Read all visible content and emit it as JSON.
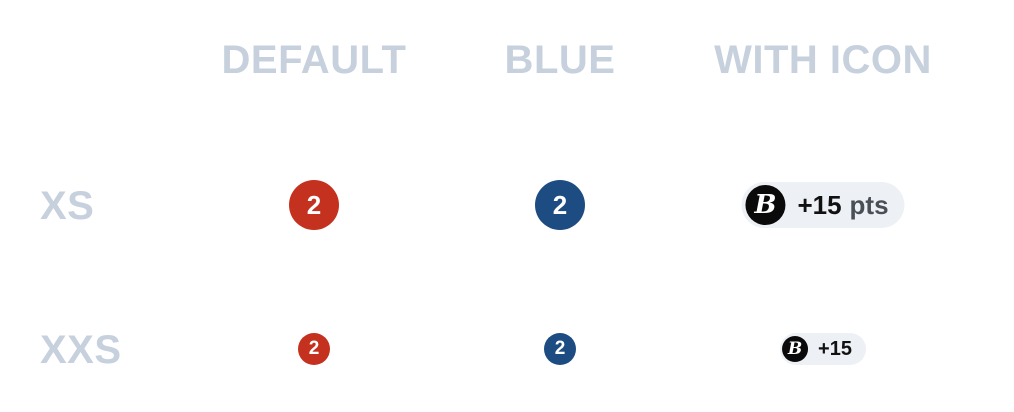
{
  "columns": {
    "default": "DEFAULT",
    "blue": "BLUE",
    "with_icon": "WITH ICON"
  },
  "rows": {
    "xs": "XS",
    "xxs": "XXS"
  },
  "badges": {
    "xs_default": "2",
    "xs_blue": "2",
    "xxs_default": "2",
    "xxs_blue": "2"
  },
  "icon_pills": {
    "xs": {
      "icon": "B",
      "icon_name": "brand-b-icon",
      "value": "+15",
      "unit": "pts"
    },
    "xxs": {
      "icon": "B",
      "icon_name": "brand-b-icon",
      "value": "+15"
    }
  },
  "colors": {
    "heading": "#c7d1dd",
    "default_badge": "#c4311e",
    "blue_badge": "#1d4c82",
    "pill_background": "#edf1f5",
    "icon_background": "#0a0a0a"
  }
}
